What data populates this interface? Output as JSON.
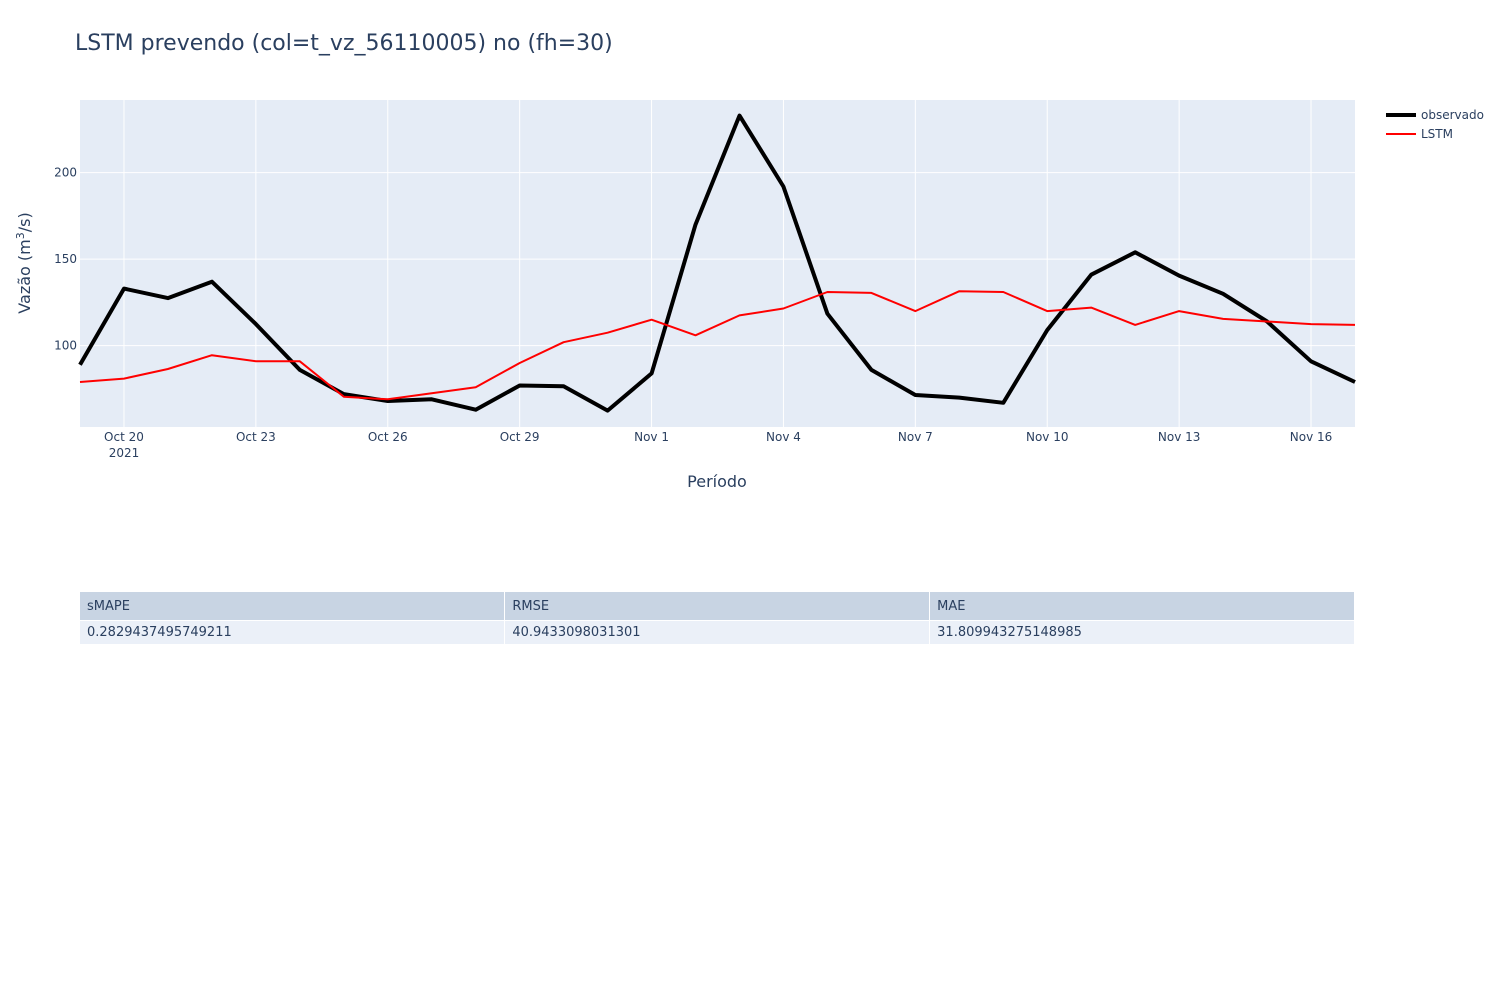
{
  "chart_data": {
    "type": "line",
    "title": "LSTM prevendo (col=t_vz_56110005) no (fh=30)",
    "xlabel": "Período",
    "ylabel": "Vazão (m³/s)",
    "x": [
      "2021-10-19",
      "2021-10-20",
      "2021-10-21",
      "2021-10-22",
      "2021-10-23",
      "2021-10-24",
      "2021-10-25",
      "2021-10-26",
      "2021-10-27",
      "2021-10-28",
      "2021-10-29",
      "2021-10-30",
      "2021-10-31",
      "2021-11-01",
      "2021-11-02",
      "2021-11-03",
      "2021-11-04",
      "2021-11-05",
      "2021-11-06",
      "2021-11-07",
      "2021-11-08",
      "2021-11-09",
      "2021-11-10",
      "2021-11-11",
      "2021-11-12",
      "2021-11-13",
      "2021-11-14",
      "2021-11-15",
      "2021-11-16",
      "2021-11-17"
    ],
    "series": [
      {
        "name": "observado",
        "color": "#000000",
        "values": [
          89,
          133,
          127.5,
          137,
          112.5,
          86,
          72,
          68,
          69,
          63,
          77,
          76.5,
          62.5,
          84,
          170,
          233,
          192,
          118.5,
          86,
          71.5,
          70,
          67,
          109,
          141,
          154,
          140.5,
          130,
          114,
          91,
          79
        ]
      },
      {
        "name": "LSTM",
        "color": "#ff0000",
        "values": [
          79,
          81,
          86.5,
          94.5,
          91,
          91,
          70.5,
          69,
          72.5,
          76,
          90,
          102,
          107.5,
          115,
          106,
          117.5,
          121.5,
          131,
          130.5,
          120,
          131.5,
          131,
          120,
          122,
          112,
          120,
          115.5,
          114,
          112.5,
          112
        ]
      }
    ],
    "xlim": [
      "2021-10-19",
      "2021-11-17"
    ],
    "ylim": [
      53,
      242
    ],
    "x_ticks": [
      {
        "date": "2021-10-20",
        "label": "Oct 20",
        "sublabel": "2021"
      },
      {
        "date": "2021-10-23",
        "label": "Oct 23"
      },
      {
        "date": "2021-10-26",
        "label": "Oct 26"
      },
      {
        "date": "2021-10-29",
        "label": "Oct 29"
      },
      {
        "date": "2021-11-01",
        "label": "Nov 1"
      },
      {
        "date": "2021-11-04",
        "label": "Nov 4"
      },
      {
        "date": "2021-11-07",
        "label": "Nov 7"
      },
      {
        "date": "2021-11-10",
        "label": "Nov 10"
      },
      {
        "date": "2021-11-13",
        "label": "Nov 13"
      },
      {
        "date": "2021-11-16",
        "label": "Nov 16"
      }
    ],
    "y_ticks": [
      100,
      150,
      200
    ],
    "grid": true,
    "legend": "top-right"
  },
  "metrics": {
    "headers": [
      "sMAPE",
      "RMSE",
      "MAE"
    ],
    "values": [
      "0.2829437495749211",
      "40.9433098031301",
      "31.809943275148985"
    ]
  }
}
